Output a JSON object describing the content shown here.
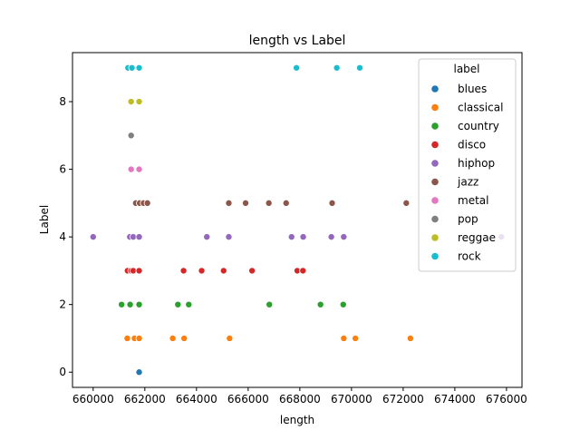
{
  "chart_data": {
    "type": "scatter",
    "title": "length vs Label",
    "xlabel": "length",
    "ylabel": "Label",
    "xlim": [
      659200,
      676600
    ],
    "ylim": [
      -0.45,
      9.45
    ],
    "xticks": [
      660000,
      662000,
      664000,
      666000,
      668000,
      670000,
      672000,
      674000,
      676000
    ],
    "yticks": [
      0,
      2,
      4,
      6,
      8
    ],
    "grid": false,
    "legend": {
      "title": "label",
      "placement": "top-right",
      "entries": [
        "blues",
        "classical",
        "country",
        "disco",
        "hiphop",
        "jazz",
        "metal",
        "pop",
        "reggae",
        "rock"
      ]
    },
    "series": [
      {
        "name": "blues",
        "color": "#1f77b4",
        "points": [
          [
            661780,
            0
          ]
        ]
      },
      {
        "name": "classical",
        "color": "#ff7f0e",
        "points": [
          [
            661320,
            1
          ],
          [
            661600,
            1
          ],
          [
            661780,
            1
          ],
          [
            663080,
            1
          ],
          [
            663520,
            1
          ],
          [
            665280,
            1
          ],
          [
            669700,
            1
          ],
          [
            670150,
            1
          ],
          [
            672280,
            1
          ]
        ]
      },
      {
        "name": "country",
        "color": "#2ca02c",
        "points": [
          [
            661100,
            2
          ],
          [
            661430,
            2
          ],
          [
            661780,
            2
          ],
          [
            663280,
            2
          ],
          [
            663700,
            2
          ],
          [
            666820,
            2
          ],
          [
            668800,
            2
          ],
          [
            669680,
            2
          ]
        ]
      },
      {
        "name": "disco",
        "color": "#d62728",
        "points": [
          [
            661330,
            3
          ],
          [
            661470,
            3
          ],
          [
            661550,
            3
          ],
          [
            661780,
            3
          ],
          [
            663500,
            3
          ],
          [
            664200,
            3
          ],
          [
            665050,
            3
          ],
          [
            666150,
            3
          ],
          [
            667900,
            3
          ],
          [
            668120,
            3
          ]
        ]
      },
      {
        "name": "hiphop",
        "color": "#9467bd",
        "points": [
          [
            660000,
            4
          ],
          [
            661420,
            4
          ],
          [
            661550,
            4
          ],
          [
            661780,
            4
          ],
          [
            664400,
            4
          ],
          [
            665250,
            4
          ],
          [
            667680,
            4
          ],
          [
            668130,
            4
          ],
          [
            669220,
            4
          ],
          [
            669700,
            4
          ],
          [
            675800,
            4
          ]
        ]
      },
      {
        "name": "jazz",
        "color": "#8c564b",
        "points": [
          [
            661650,
            5
          ],
          [
            661800,
            5
          ],
          [
            661950,
            5
          ],
          [
            662100,
            5
          ],
          [
            665250,
            5
          ],
          [
            665900,
            5
          ],
          [
            666800,
            5
          ],
          [
            667470,
            5
          ],
          [
            669250,
            5
          ],
          [
            672120,
            5
          ]
        ]
      },
      {
        "name": "metal",
        "color": "#e377c2",
        "points": [
          [
            661470,
            6
          ],
          [
            661780,
            6
          ]
        ]
      },
      {
        "name": "pop",
        "color": "#7f7f7f",
        "points": [
          [
            661470,
            7
          ]
        ]
      },
      {
        "name": "reggae",
        "color": "#bcbd22",
        "points": [
          [
            661470,
            8
          ],
          [
            661780,
            8
          ]
        ]
      },
      {
        "name": "rock",
        "color": "#17becf",
        "points": [
          [
            661350,
            9
          ],
          [
            661500,
            9
          ],
          [
            661780,
            9
          ],
          [
            667870,
            9
          ],
          [
            669430,
            9
          ],
          [
            670320,
            9
          ]
        ]
      }
    ]
  }
}
